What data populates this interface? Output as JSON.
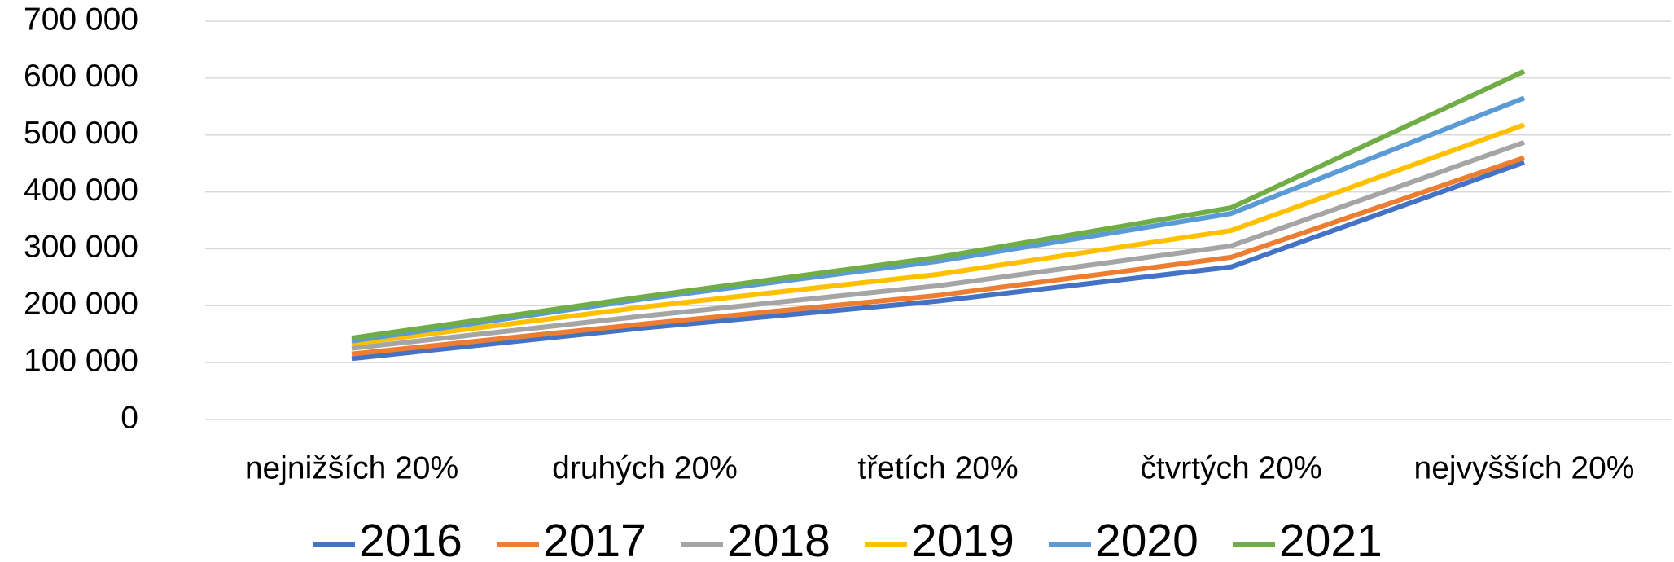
{
  "chart_data": {
    "type": "line",
    "categories": [
      "nejnižších 20%",
      "druhých 20%",
      "třetích 20%",
      "čtvrtých 20%",
      "nejvyšších 20%"
    ],
    "series": [
      {
        "name": "2016",
        "color": "#4472c4",
        "values": [
          107000,
          161000,
          208000,
          268000,
          452000
        ]
      },
      {
        "name": "2017",
        "color": "#ed7d31",
        "values": [
          115000,
          168000,
          218000,
          285000,
          460000
        ]
      },
      {
        "name": "2018",
        "color": "#a5a5a5",
        "values": [
          125000,
          182000,
          235000,
          305000,
          487000
        ]
      },
      {
        "name": "2019",
        "color": "#ffc000",
        "values": [
          133000,
          198000,
          255000,
          332000,
          518000
        ]
      },
      {
        "name": "2020",
        "color": "#5b9bd5",
        "values": [
          138000,
          212000,
          278000,
          362000,
          565000
        ]
      },
      {
        "name": "2021",
        "color": "#70ad47",
        "values": [
          143000,
          216000,
          285000,
          372000,
          612000
        ]
      }
    ],
    "ylim": [
      0,
      700000
    ],
    "yticks": [
      0,
      {
        "value": 100000,
        "label": "100 000"
      },
      {
        "value": 200000,
        "label": "200 000"
      },
      {
        "value": 300000,
        "label": "300 000"
      },
      {
        "value": 400000,
        "label": "400 000"
      },
      {
        "value": 500000,
        "label": "500 000"
      },
      {
        "value": 600000,
        "label": "600 000"
      },
      {
        "value": 700000,
        "label": "700 000"
      }
    ],
    "grid": true,
    "legend": "bottom"
  }
}
